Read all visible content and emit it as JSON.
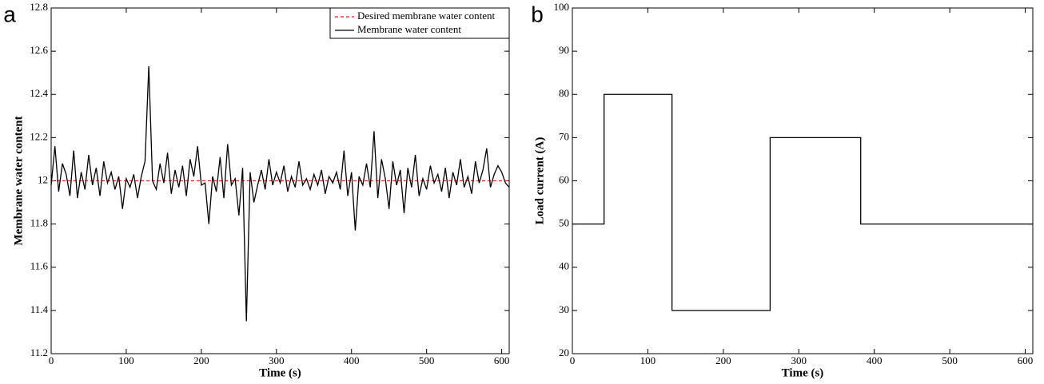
{
  "chart_data": [
    {
      "type": "line",
      "panel_label": "a",
      "xlabel": "Time (s)",
      "ylabel": "Membrane water content",
      "xlim": [
        0,
        610
      ],
      "ylim": [
        11.2,
        12.8
      ],
      "xticks": [
        0,
        100,
        200,
        300,
        400,
        500,
        600
      ],
      "yticks": [
        11.2,
        11.4,
        11.6,
        11.8,
        12,
        12.2,
        12.4,
        12.6,
        12.8
      ],
      "legend": "upper right",
      "series": [
        {
          "name": "Desired membrane water content",
          "color": "#e41a1c",
          "dash": true,
          "x": [
            0,
            610
          ],
          "values": [
            12,
            12
          ]
        },
        {
          "name": "Membrane water content",
          "color": "#000000",
          "dash": false,
          "x": [
            0,
            5,
            10,
            15,
            20,
            25,
            30,
            35,
            40,
            45,
            50,
            55,
            60,
            65,
            70,
            75,
            80,
            85,
            90,
            95,
            100,
            105,
            110,
            115,
            120,
            125,
            130,
            135,
            140,
            145,
            150,
            155,
            160,
            165,
            170,
            175,
            180,
            185,
            190,
            195,
            200,
            205,
            210,
            215,
            220,
            225,
            230,
            235,
            240,
            245,
            250,
            255,
            260,
            265,
            270,
            275,
            280,
            285,
            290,
            295,
            300,
            305,
            310,
            315,
            320,
            325,
            330,
            335,
            340,
            345,
            350,
            355,
            360,
            365,
            370,
            375,
            380,
            385,
            390,
            395,
            400,
            405,
            410,
            415,
            420,
            425,
            430,
            435,
            440,
            445,
            450,
            455,
            460,
            465,
            470,
            475,
            480,
            485,
            490,
            495,
            500,
            505,
            510,
            515,
            520,
            525,
            530,
            535,
            540,
            545,
            550,
            555,
            560,
            565,
            570,
            575,
            580,
            585,
            590,
            595,
            600,
            605,
            610
          ],
          "values": [
            11.98,
            12.16,
            11.95,
            12.08,
            12.03,
            11.93,
            12.14,
            11.92,
            12.04,
            11.96,
            12.12,
            11.98,
            12.06,
            11.93,
            12.09,
            11.99,
            12.04,
            11.96,
            12.02,
            11.87,
            12.01,
            11.97,
            12.03,
            11.92,
            12.02,
            12.09,
            12.53,
            12.0,
            11.96,
            12.08,
            11.99,
            12.13,
            11.94,
            12.05,
            11.97,
            12.07,
            11.93,
            12.1,
            12.02,
            12.16,
            11.98,
            11.99,
            11.8,
            12.02,
            11.95,
            12.11,
            11.92,
            12.17,
            11.98,
            12.01,
            11.84,
            12.06,
            11.35,
            12.04,
            11.9,
            11.98,
            12.05,
            11.96,
            12.1,
            11.98,
            12.04,
            11.99,
            12.07,
            11.95,
            12.02,
            11.97,
            12.09,
            11.98,
            12.01,
            11.96,
            12.03,
            11.98,
            12.05,
            11.94,
            12.02,
            11.99,
            12.04,
            11.96,
            12.14,
            11.93,
            12.04,
            11.77,
            12.02,
            11.98,
            12.08,
            11.97,
            12.23,
            11.92,
            12.1,
            12.01,
            11.87,
            12.09,
            11.98,
            12.05,
            11.85,
            12.06,
            11.97,
            12.12,
            11.93,
            12.01,
            11.96,
            12.07,
            11.99,
            12.03,
            11.95,
            12.06,
            11.92,
            12.04,
            11.98,
            12.1,
            11.97,
            12.02,
            11.94,
            12.09,
            11.99,
            12.05,
            12.15,
            11.97,
            12.03,
            12.07,
            12.04,
            11.99,
            11.97
          ]
        }
      ]
    },
    {
      "type": "line",
      "panel_label": "b",
      "xlabel": "Time (s)",
      "ylabel": "Load current (A)",
      "xlim": [
        0,
        610
      ],
      "ylim": [
        20,
        100
      ],
      "xticks": [
        0,
        100,
        200,
        300,
        400,
        500,
        600
      ],
      "yticks": [
        20,
        30,
        40,
        50,
        60,
        70,
        80,
        90,
        100
      ],
      "series": [
        {
          "color": "#000000",
          "dash": false,
          "x": [
            0,
            42,
            42,
            132,
            132,
            262,
            262,
            382,
            382,
            610
          ],
          "values": [
            50,
            50,
            80,
            80,
            30,
            30,
            70,
            70,
            50,
            50
          ]
        }
      ]
    }
  ]
}
